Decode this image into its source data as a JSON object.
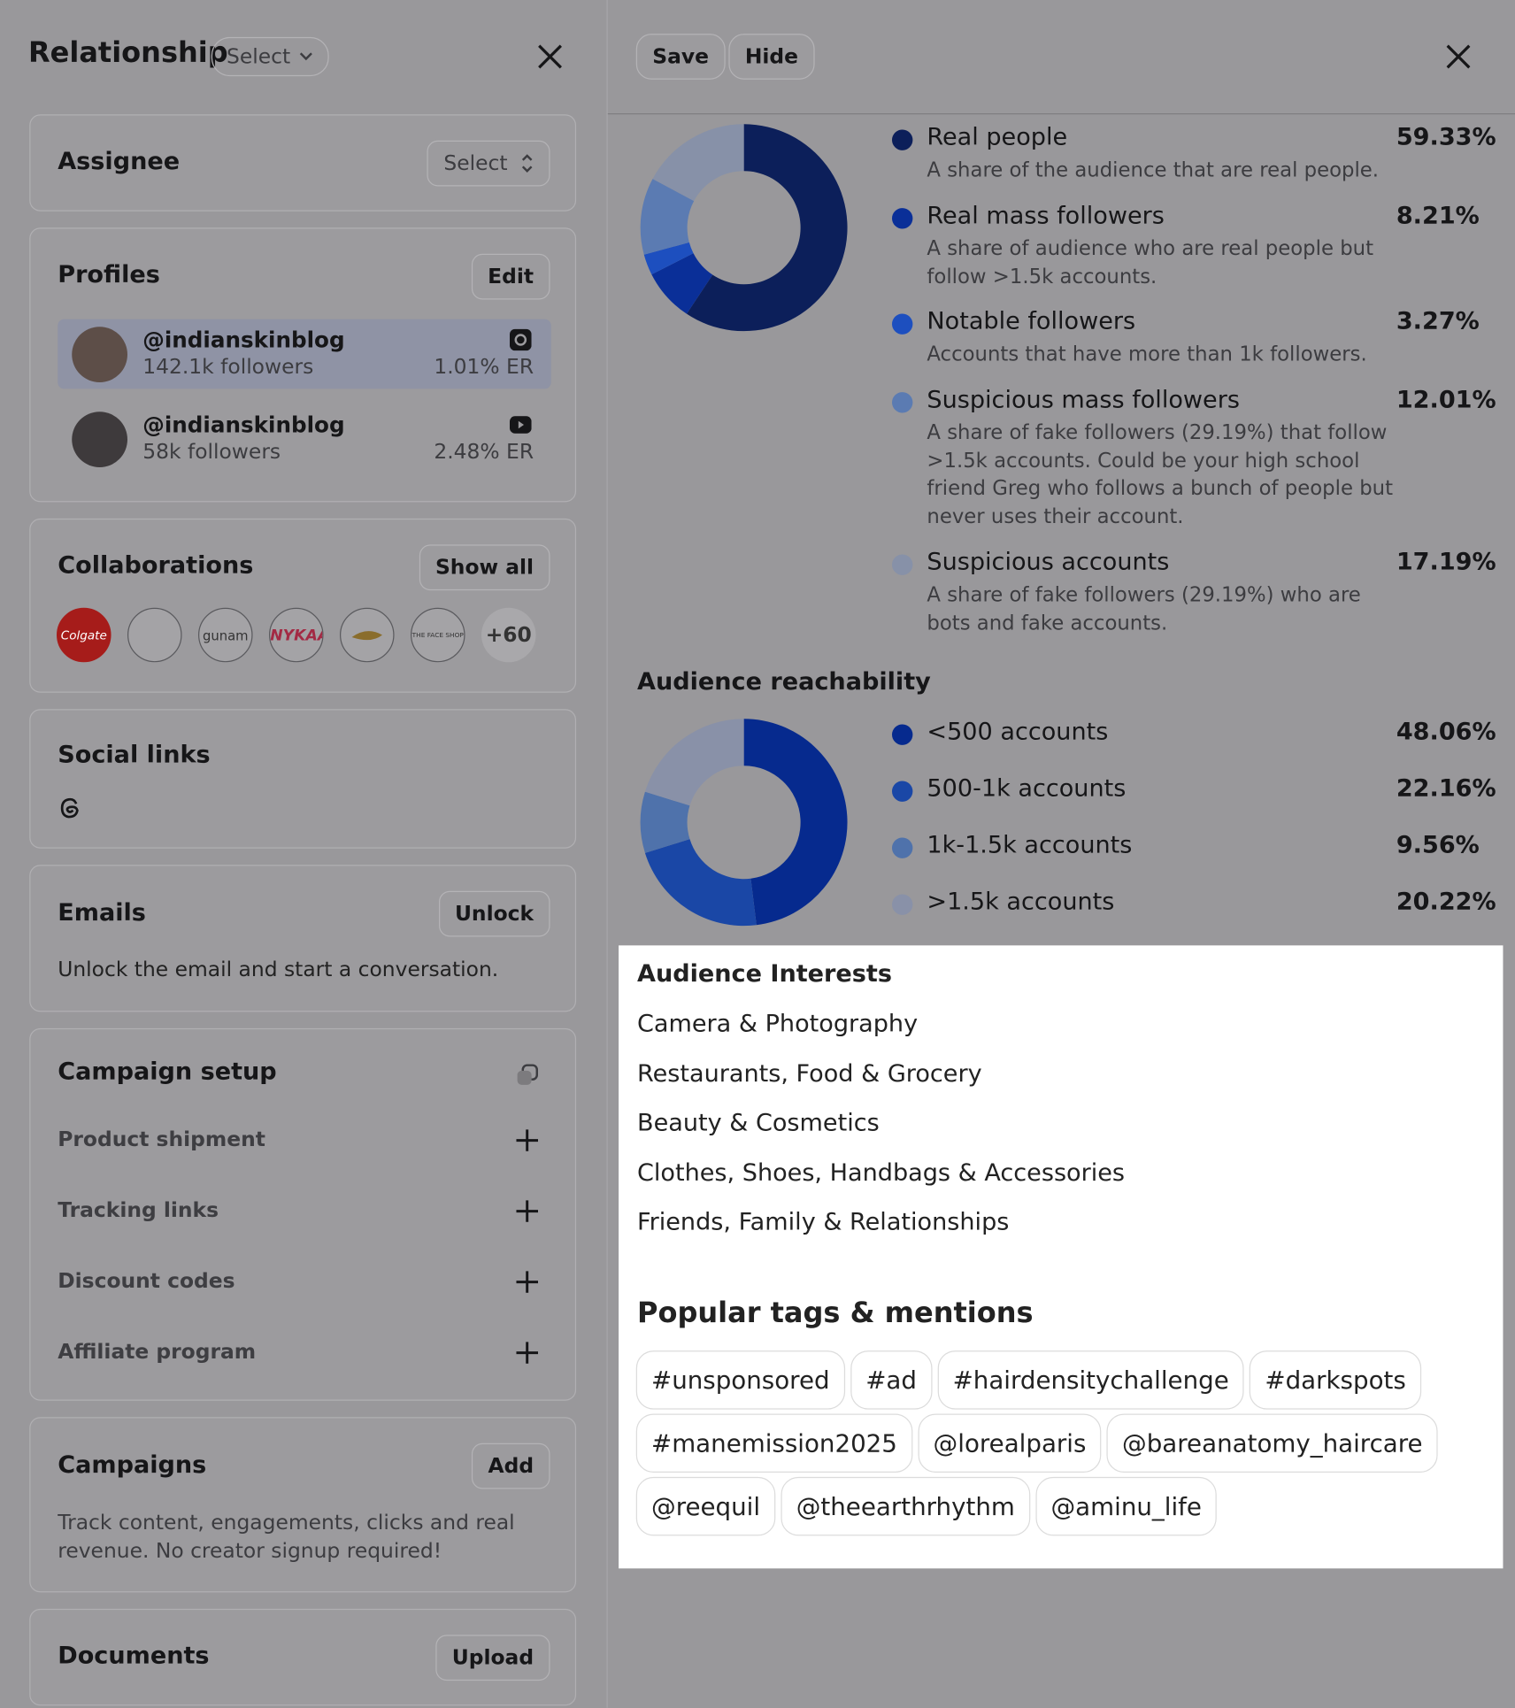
{
  "left": {
    "title": "Relationship",
    "select": "Select"
  },
  "assignee": {
    "label": "Assignee",
    "select": "Select"
  },
  "profiles": {
    "title": "Profiles",
    "button": "Edit",
    "items": [
      {
        "handle": "@indianskinblog",
        "followers": "142.1k followers",
        "er": "1.01% ER"
      },
      {
        "handle": "@indianskinblog",
        "followers": "58k followers",
        "er": "2.48% ER"
      }
    ]
  },
  "collaborations": {
    "title": "Collaborations",
    "button": "Show all",
    "brands": [
      "Colgate",
      "gunam",
      "NYKAA",
      "THE FACE SHOP"
    ],
    "more": "+60"
  },
  "social_links": {
    "title": "Social links"
  },
  "emails": {
    "title": "Emails",
    "button": "Unlock",
    "text": "Unlock the email and start a conversation."
  },
  "campaign_setup": {
    "title": "Campaign setup",
    "items": [
      "Product shipment",
      "Tracking links",
      "Discount codes",
      "Affiliate program"
    ]
  },
  "campaigns": {
    "title": "Campaigns",
    "button": "Add",
    "text": "Track content, engagements, clicks and real revenue. No creator signup required!"
  },
  "documents": {
    "title": "Documents",
    "button": "Upload"
  },
  "toolbar": {
    "save": "Save",
    "hide": "Hide"
  },
  "chart_data": [
    {
      "type": "pie",
      "categories": [
        "Real people",
        "Real mass followers",
        "Notable followers",
        "Suspicious mass followers",
        "Suspicious accounts"
      ],
      "descriptions": [
        "A share of the audience that are real people.",
        "A share of audience who are real people but follow >1.5k accounts.",
        "Accounts that have more than 1k followers.",
        "A share of fake followers (29.19%) that follow >1.5k accounts. Could be your high school friend Greg who follows a bunch of people but never uses their account.",
        "A share of fake followers (29.19%) who are bots and fake accounts."
      ],
      "values": [
        59.33,
        8.21,
        3.27,
        12.01,
        17.19
      ],
      "value_labels": [
        "59.33%",
        "8.21%",
        "3.27%",
        "12.01%",
        "17.19%"
      ],
      "colors": [
        "#0c1f5a",
        "#0a2f98",
        "#1d4fbf",
        "#5b7bb2",
        "#8791a8"
      ]
    },
    {
      "type": "pie",
      "title": "Audience reachability",
      "categories": [
        "<500 accounts",
        "500-1k accounts",
        "1k-1.5k accounts",
        ">1.5k accounts"
      ],
      "values": [
        48.06,
        22.16,
        9.56,
        20.22
      ],
      "value_labels": [
        "48.06%",
        "22.16%",
        "9.56%",
        "20.22%"
      ],
      "colors": [
        "#062a8e",
        "#1a47a6",
        "#4f72ab",
        "#8991a8"
      ]
    }
  ],
  "interests": {
    "title": "Audience Interests",
    "items": [
      "Camera & Photography",
      "Restaurants, Food & Grocery",
      "Beauty & Cosmetics",
      "Clothes, Shoes, Handbags & Accessories",
      "Friends, Family & Relationships"
    ]
  },
  "tags": {
    "title": "Popular tags & mentions",
    "items": [
      "#unsponsored",
      "#ad",
      "#hairdensitychallenge",
      "#darkspots",
      "#manemission2025",
      "@lorealparis",
      "@bareanatomy_haircare",
      "@reequil",
      "@theearthrhythm",
      "@aminu_life"
    ]
  }
}
